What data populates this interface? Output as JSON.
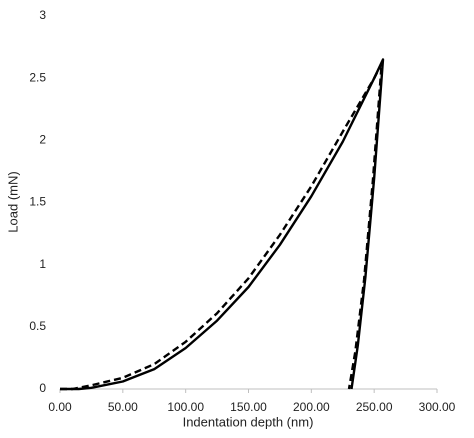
{
  "chart_data": {
    "type": "line",
    "x_label": "Indentation depth (nm)",
    "y_label": "Load (mN)",
    "series": [
      {
        "color": "#000000",
        "dash": false,
        "x": [
          0,
          15,
          25,
          50,
          75,
          100,
          125,
          150,
          175,
          200,
          225,
          250,
          257,
          250,
          243,
          237,
          232
        ],
        "values": [
          0,
          0,
          0.01,
          0.06,
          0.16,
          0.33,
          0.55,
          0.82,
          1.16,
          1.55,
          1.99,
          2.5,
          2.65,
          1.7,
          0.9,
          0.35,
          0
        ]
      },
      {
        "color": "#000000",
        "dash": true,
        "x": [
          0,
          10,
          25,
          50,
          75,
          100,
          125,
          150,
          175,
          200,
          225,
          250,
          256,
          249,
          242,
          235,
          230
        ],
        "values": [
          0,
          0,
          0.03,
          0.09,
          0.2,
          0.38,
          0.61,
          0.89,
          1.24,
          1.63,
          2.07,
          2.5,
          2.62,
          1.68,
          0.88,
          0.3,
          0
        ]
      }
    ],
    "xlim": [
      0,
      300
    ],
    "ylim": [
      0,
      3
    ],
    "xticks": [
      {
        "value": 0,
        "label": "0.00"
      },
      {
        "value": 50,
        "label": "50.00"
      },
      {
        "value": 100,
        "label": "100.00"
      },
      {
        "value": 150,
        "label": "150.00"
      },
      {
        "value": 200,
        "label": "200.00"
      },
      {
        "value": 250,
        "label": "250.00"
      },
      {
        "value": 300,
        "label": "300.00"
      }
    ],
    "yticks": [
      0,
      0.5,
      1,
      1.5,
      2,
      2.5,
      3
    ],
    "grid": false
  }
}
